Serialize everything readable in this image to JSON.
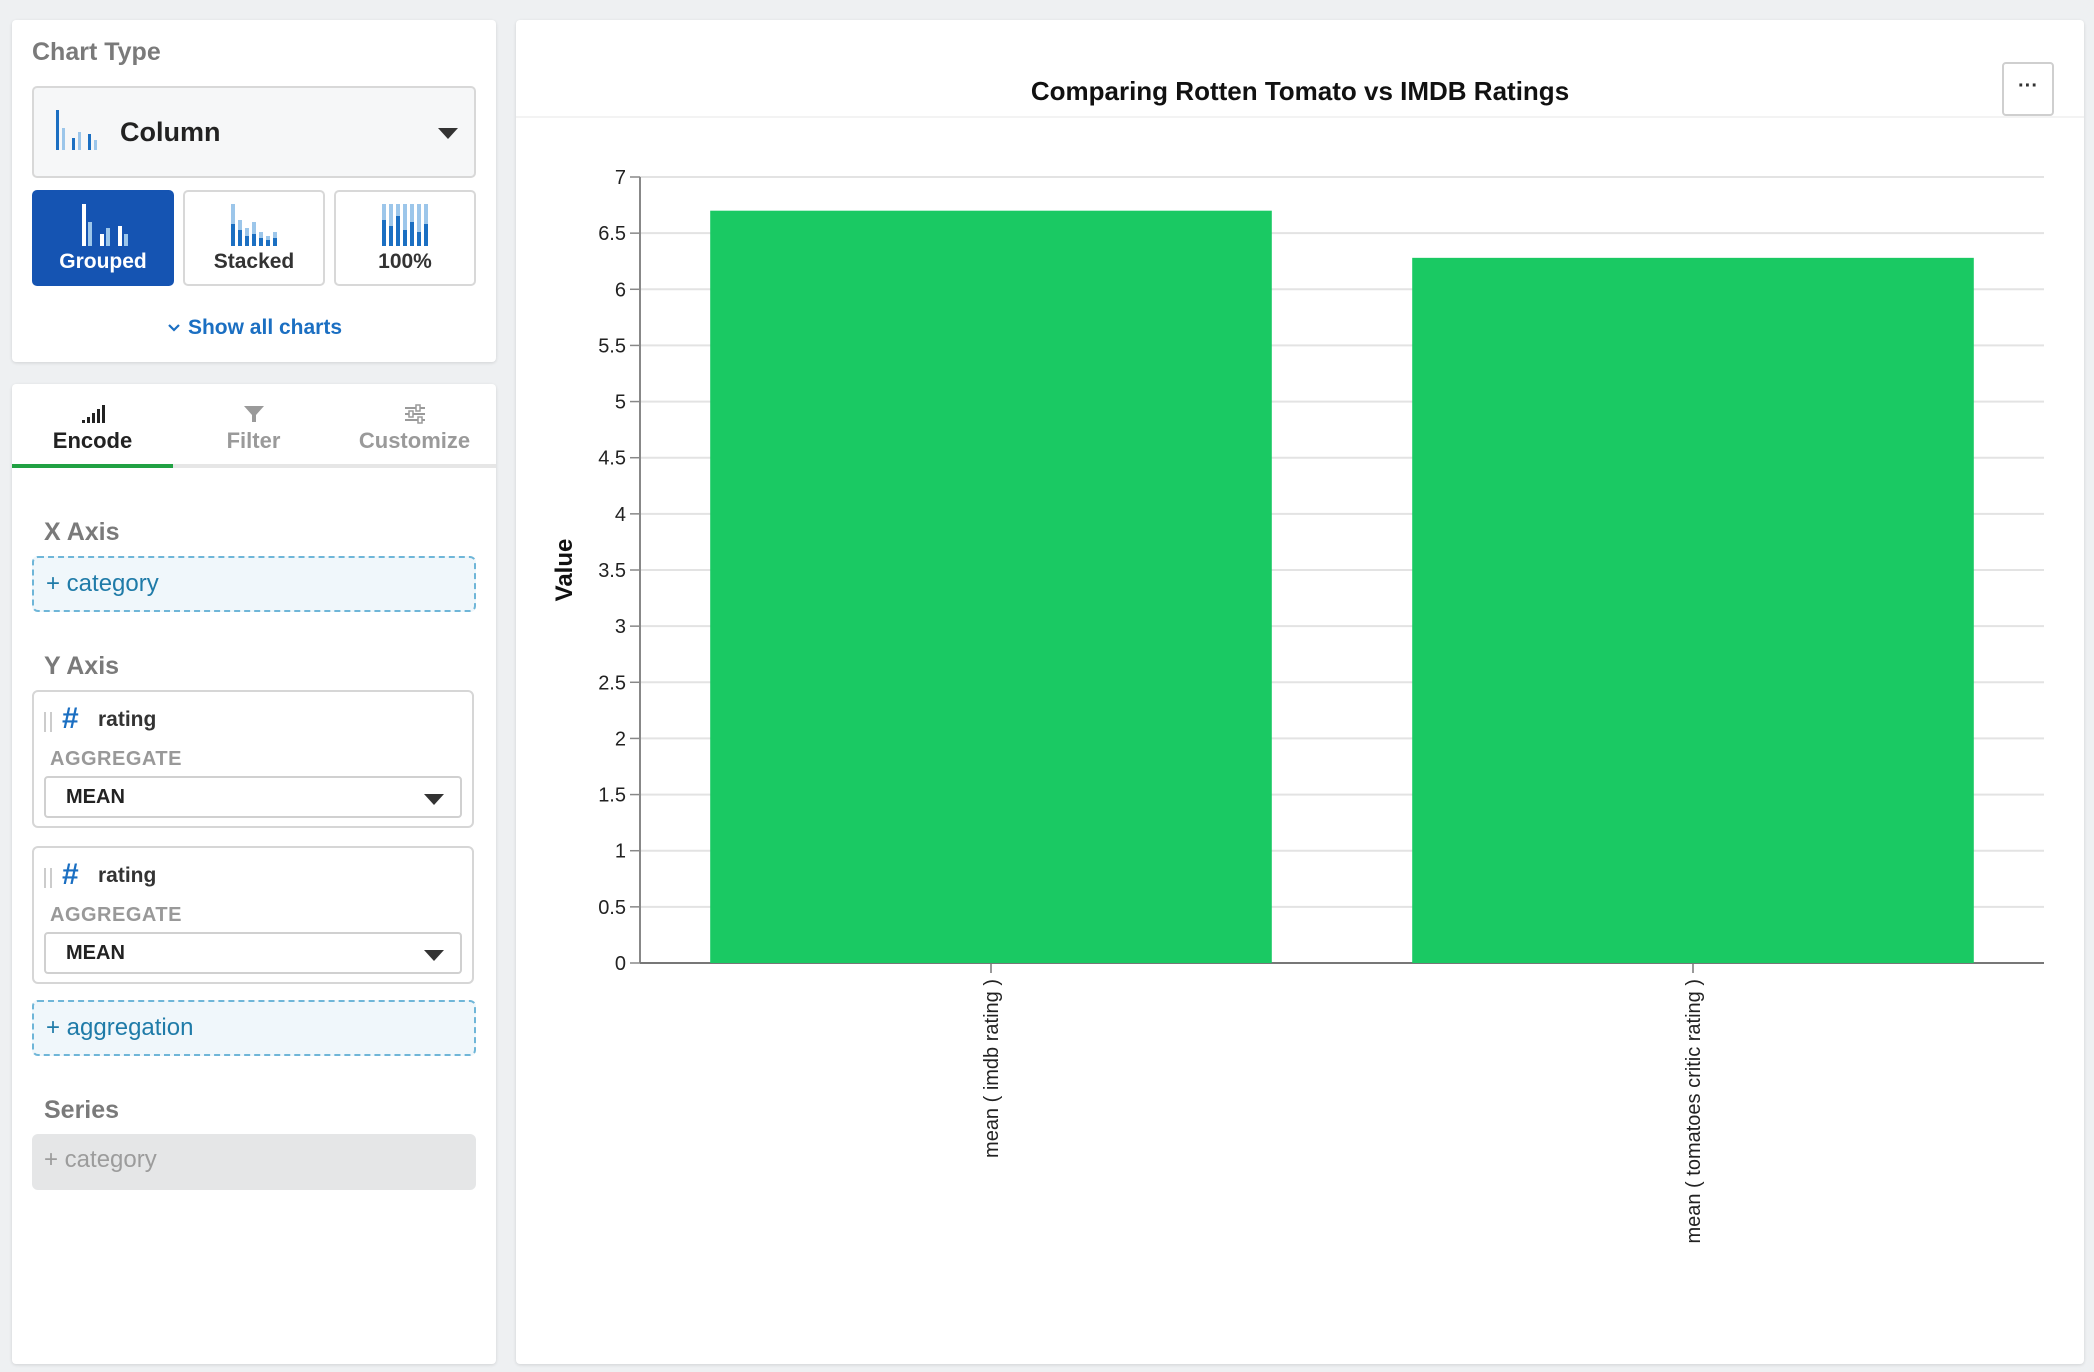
{
  "chart_type_panel": {
    "heading": "Chart Type",
    "selected_type": "Column",
    "subtypes": [
      {
        "label": "Grouped",
        "active": true
      },
      {
        "label": "Stacked",
        "active": false
      },
      {
        "label": "100%",
        "active": false
      }
    ],
    "show_all_label": "Show all charts"
  },
  "encode_panel": {
    "tabs": [
      {
        "label": "Encode",
        "active": true
      },
      {
        "label": "Filter",
        "active": false
      },
      {
        "label": "Customize",
        "active": false
      }
    ],
    "x_axis": {
      "heading": "X Axis",
      "placeholder": "+ category"
    },
    "y_axis": {
      "heading": "Y Axis",
      "fields": [
        {
          "name": "rating",
          "aggregate_label": "AGGREGATE",
          "aggregate": "MEAN"
        },
        {
          "name": "rating",
          "aggregate_label": "AGGREGATE",
          "aggregate": "MEAN"
        }
      ],
      "add_placeholder": "+ aggregation"
    },
    "series": {
      "heading": "Series",
      "placeholder": "+ category"
    }
  },
  "chart_panel": {
    "more_button": "···"
  },
  "colors": {
    "bar": "#1ac963",
    "accent": "#1554b2",
    "tab_active": "#21a143"
  },
  "chart_data": {
    "type": "bar",
    "title": "Comparing Rotten Tomato vs IMDB Ratings",
    "xlabel": "",
    "ylabel": "Value",
    "categories": [
      "mean ( imdb rating )",
      "mean ( tomatoes critic rating )"
    ],
    "values": [
      6.7,
      6.28
    ],
    "ylim": [
      0,
      7
    ],
    "yticks": [
      "0",
      "0.5",
      "1",
      "1.5",
      "2",
      "2.5",
      "3",
      "3.5",
      "4",
      "4.5",
      "5",
      "5.5",
      "6",
      "6.5",
      "7"
    ],
    "grid": true,
    "legend": "none"
  }
}
